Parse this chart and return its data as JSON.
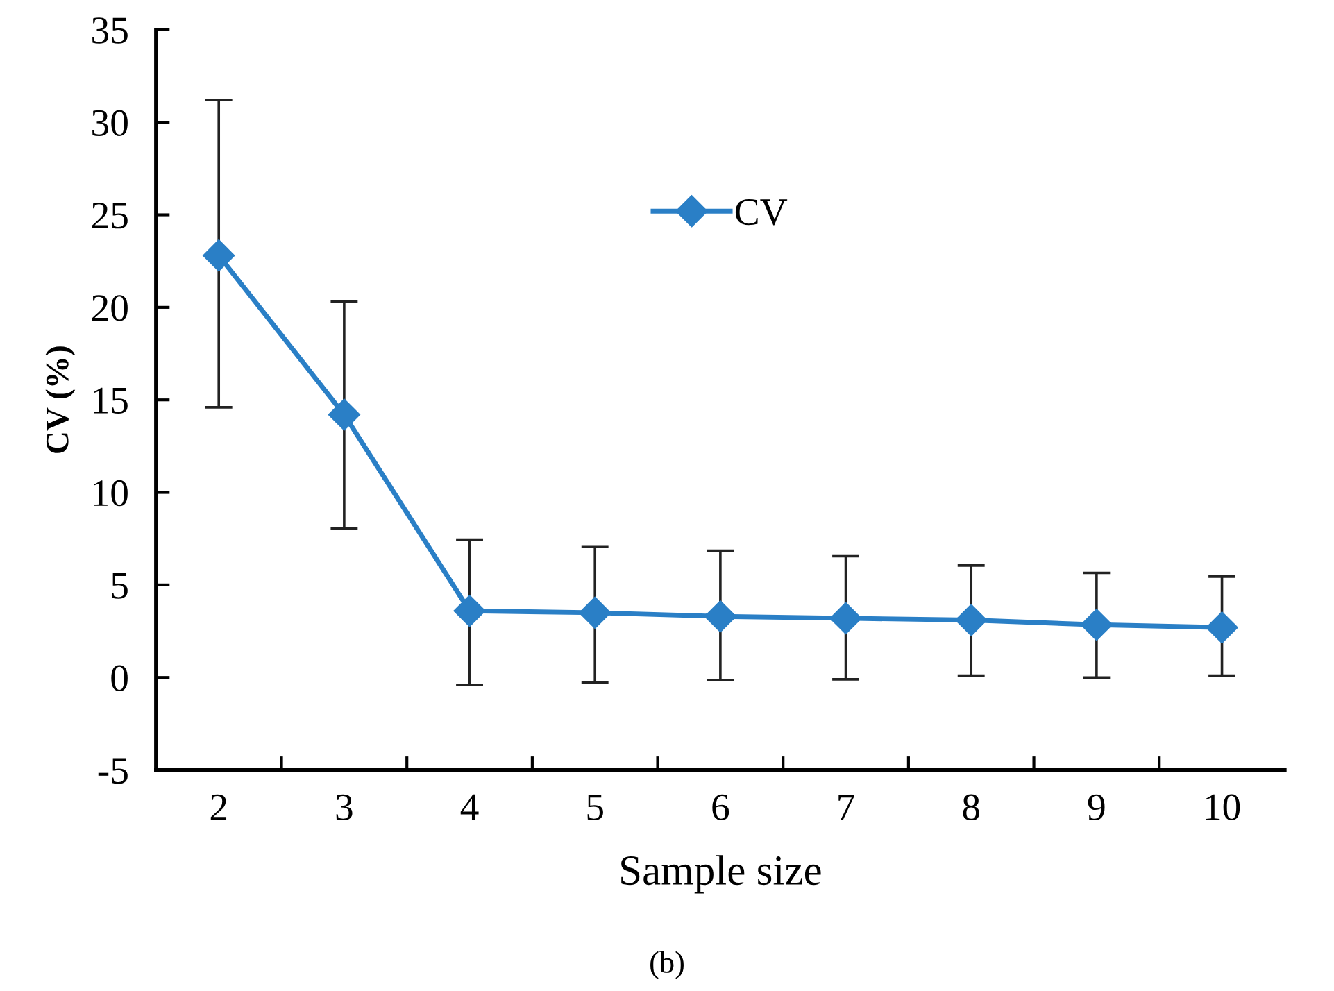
{
  "chart_data": {
    "type": "line",
    "xlabel": "Sample size",
    "ylabel": "CV (%)",
    "categories": [
      "2",
      "3",
      "4",
      "5",
      "6",
      "7",
      "8",
      "9",
      "10"
    ],
    "series": [
      {
        "name": "CV",
        "color": "#2a7fc6",
        "values": [
          22.8,
          14.2,
          3.6,
          3.5,
          3.3,
          3.2,
          3.1,
          2.85,
          2.7
        ],
        "errors": [
          [
            14.6,
            31.2
          ],
          [
            8.05,
            20.3
          ],
          [
            -0.4,
            7.45
          ],
          [
            -0.27,
            7.05
          ],
          [
            -0.15,
            6.85
          ],
          [
            -0.1,
            6.55
          ],
          [
            0.1,
            6.05
          ],
          [
            0.0,
            5.65
          ],
          [
            0.1,
            5.45
          ]
        ]
      }
    ],
    "ylim": [
      -5,
      35
    ],
    "yticks": [
      -5,
      0,
      5,
      10,
      15,
      20,
      25,
      30,
      35
    ],
    "marker": "diamond",
    "line_style": "solid",
    "legend": "top",
    "grid": false,
    "annotations": [
      "(b)"
    ]
  }
}
